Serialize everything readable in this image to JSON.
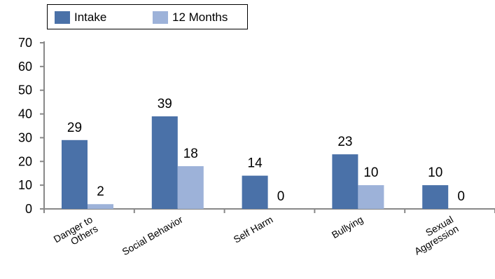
{
  "chart_data": {
    "type": "bar",
    "categories": [
      "Danger to Others",
      "Social Behavior",
      "Self Harm",
      "Bullying",
      "Sexual Aggression"
    ],
    "category_label_lines": [
      [
        "Danger to",
        "Others"
      ],
      [
        "Social Behavior"
      ],
      [
        "Self Harm"
      ],
      [
        "Bullying"
      ],
      [
        "Sexual",
        "Aggression"
      ]
    ],
    "series": [
      {
        "name": "Intake",
        "values": [
          29,
          39,
          14,
          23,
          10
        ],
        "color": "#4a71a8"
      },
      {
        "name": "12 Months",
        "values": [
          2,
          18,
          0,
          10,
          0
        ],
        "color": "#9db2d9"
      }
    ],
    "ylim": [
      0,
      70
    ],
    "yticks": [
      0,
      10,
      20,
      30,
      40,
      50,
      60,
      70
    ],
    "legend_position": "top-left",
    "grid": false,
    "data_labels": true
  }
}
